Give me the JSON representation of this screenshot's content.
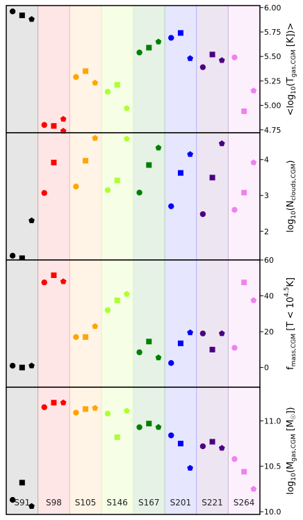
{
  "chart_data": {
    "type": "scatter",
    "shared_x": {
      "categories": [
        "S91",
        "S98",
        "S105",
        "S146",
        "S167",
        "S201",
        "S221",
        "S264"
      ],
      "colors": [
        "#000000",
        "#ff0000",
        "#ffa500",
        "#adff2f",
        "#008000",
        "#0000ff",
        "#4b0082",
        "#ee82ee"
      ],
      "band_colors": [
        "#e6e6e6",
        "#ffe6e6",
        "#fff4e6",
        "#f6ffe6",
        "#e6f2e6",
        "#e6e6ff",
        "#ede6f2",
        "#fdf0fd"
      ]
    },
    "marker_offsets": {
      "circle": -0.3,
      "square": 0,
      "pentagon": 0.3
    },
    "panels": [
      {
        "ylabel": "<log10(Tgas,CGM [K])>",
        "ylim": [
          4.72,
          6.02
        ],
        "yticks": [
          {
            "value": 4.75,
            "label": "4.75"
          },
          {
            "value": 5.0,
            "label": "5.00"
          },
          {
            "value": 5.25,
            "label": "5.25"
          },
          {
            "value": 5.5,
            "label": "5.50"
          },
          {
            "value": 5.75,
            "label": "5.75"
          },
          {
            "value": 6.0,
            "label": "6.00"
          }
        ],
        "series": [
          {
            "marker": "circle",
            "values": [
              5.96,
              4.8,
              5.29,
              5.14,
              5.54,
              5.69,
              5.39,
              5.49
            ]
          },
          {
            "marker": "square",
            "values": [
              5.92,
              4.79,
              5.35,
              5.21,
              5.59,
              5.74,
              5.52,
              4.94
            ]
          },
          {
            "marker": "pentagon",
            "values": [
              5.88,
              4.86,
              5.23,
              4.97,
              5.65,
              5.48,
              5.46,
              5.15
            ]
          }
        ]
      },
      {
        "ylabel": "log10(Nclouds,CGM)",
        "ylim": [
          1.2,
          4.75
        ],
        "yticks": [
          {
            "value": 2,
            "label": "2"
          },
          {
            "value": 3,
            "label": "3"
          },
          {
            "value": 4,
            "label": "4"
          }
        ],
        "series": [
          {
            "marker": "circle",
            "values": [
              1.32,
              3.07,
              3.25,
              3.15,
              3.08,
              2.7,
              2.48,
              2.6
            ]
          },
          {
            "marker": "square",
            "values": [
              1.25,
              3.92,
              3.97,
              3.42,
              3.85,
              3.63,
              3.5,
              3.08
            ]
          },
          {
            "marker": "pentagon",
            "values": [
              2.3,
              4.8,
              4.6,
              4.58,
              4.33,
              4.15,
              4.45,
              3.92
            ]
          }
        ]
      },
      {
        "ylabel": "fmass,CGM [T < 10^4.5 K]",
        "ylim": [
          -11,
          60
        ],
        "yticks": [
          {
            "value": 0,
            "label": "0"
          },
          {
            "value": 20,
            "label": "20"
          },
          {
            "value": 40,
            "label": "40"
          },
          {
            "value": 60,
            "label": "60"
          }
        ],
        "series": [
          {
            "marker": "circle",
            "values": [
              1,
              47.5,
              17,
              32,
              8.5,
              2.5,
              19,
              11
            ]
          },
          {
            "marker": "square",
            "values": [
              0,
              51.5,
              17,
              37.5,
              14.5,
              13.5,
              10,
              47.5
            ]
          },
          {
            "marker": "pentagon",
            "values": [
              1,
              48,
              23,
              41,
              5.5,
              19.5,
              19,
              37.5
            ]
          }
        ]
      },
      {
        "ylabel": "log10(Mgas,CGM [M☉])",
        "ylim": [
          9.97,
          11.37
        ],
        "yticks": [
          {
            "value": 10.0,
            "label": "10.0"
          },
          {
            "value": 10.5,
            "label": "10.5"
          },
          {
            "value": 11.0,
            "label": "11.0"
          }
        ],
        "series": [
          {
            "marker": "circle",
            "values": [
              10.13,
              11.15,
              11.09,
              11.08,
              10.93,
              10.84,
              10.72,
              10.58
            ]
          },
          {
            "marker": "square",
            "values": [
              10.32,
              11.2,
              11.13,
              10.82,
              10.97,
              10.75,
              10.77,
              10.44
            ]
          },
          {
            "marker": "pentagon",
            "values": [
              10.06,
              11.2,
              11.14,
              11.11,
              10.93,
              10.48,
              10.7,
              10.25
            ]
          }
        ]
      }
    ]
  }
}
